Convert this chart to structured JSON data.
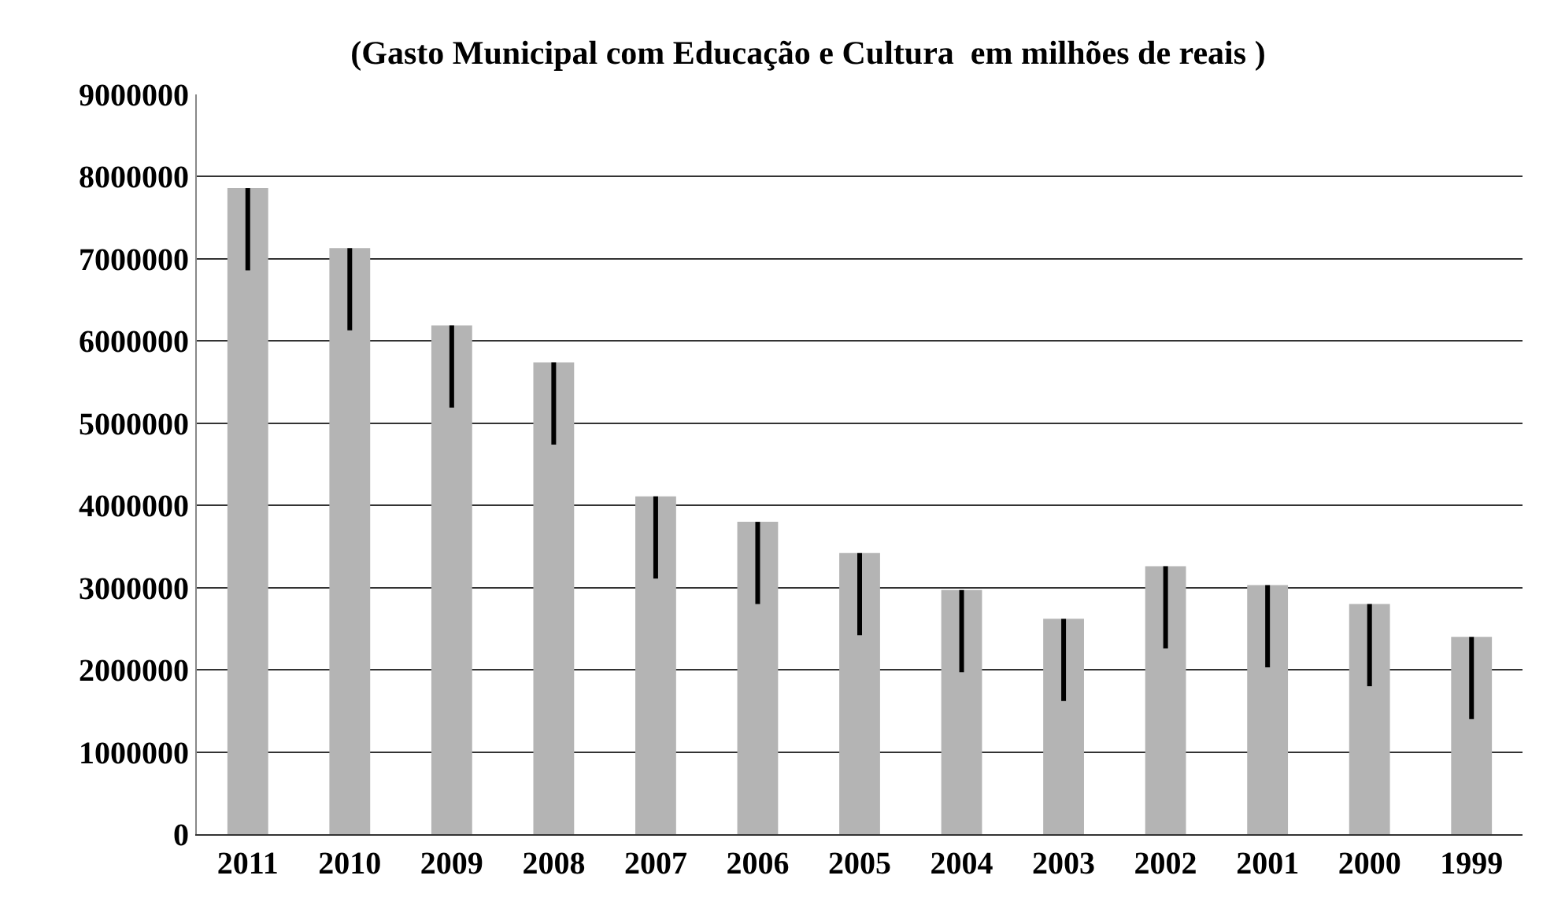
{
  "chart_data": {
    "type": "bar",
    "title": "(Gasto Municipal com Educação e Cultura  em milhões de reais )",
    "categories": [
      "2011",
      "2010",
      "2009",
      "2008",
      "2007",
      "2006",
      "2005",
      "2004",
      "2003",
      "2002",
      "2001",
      "2000",
      "1999"
    ],
    "values": [
      7860000,
      7130000,
      6190000,
      5740000,
      4110000,
      3800000,
      3420000,
      2970000,
      2620000,
      3260000,
      3030000,
      2800000,
      2400000
    ],
    "errors": [
      [
        6860000,
        7860000
      ],
      [
        6130000,
        7130000
      ],
      [
        5190000,
        6190000
      ],
      [
        4740000,
        5740000
      ],
      [
        3110000,
        4110000
      ],
      [
        2800000,
        3800000
      ],
      [
        2420000,
        3420000
      ],
      [
        1970000,
        2970000
      ],
      [
        1620000,
        2620000
      ],
      [
        2260000,
        3260000
      ],
      [
        2030000,
        3030000
      ],
      [
        1800000,
        2800000
      ],
      [
        1400000,
        2400000
      ]
    ],
    "color": "#b4b4b4",
    "ylim": [
      0,
      9000000
    ],
    "yticks": [
      0,
      1000000,
      2000000,
      3000000,
      4000000,
      5000000,
      6000000,
      7000000,
      8000000,
      9000000
    ],
    "grid": "y",
    "legend": false
  }
}
